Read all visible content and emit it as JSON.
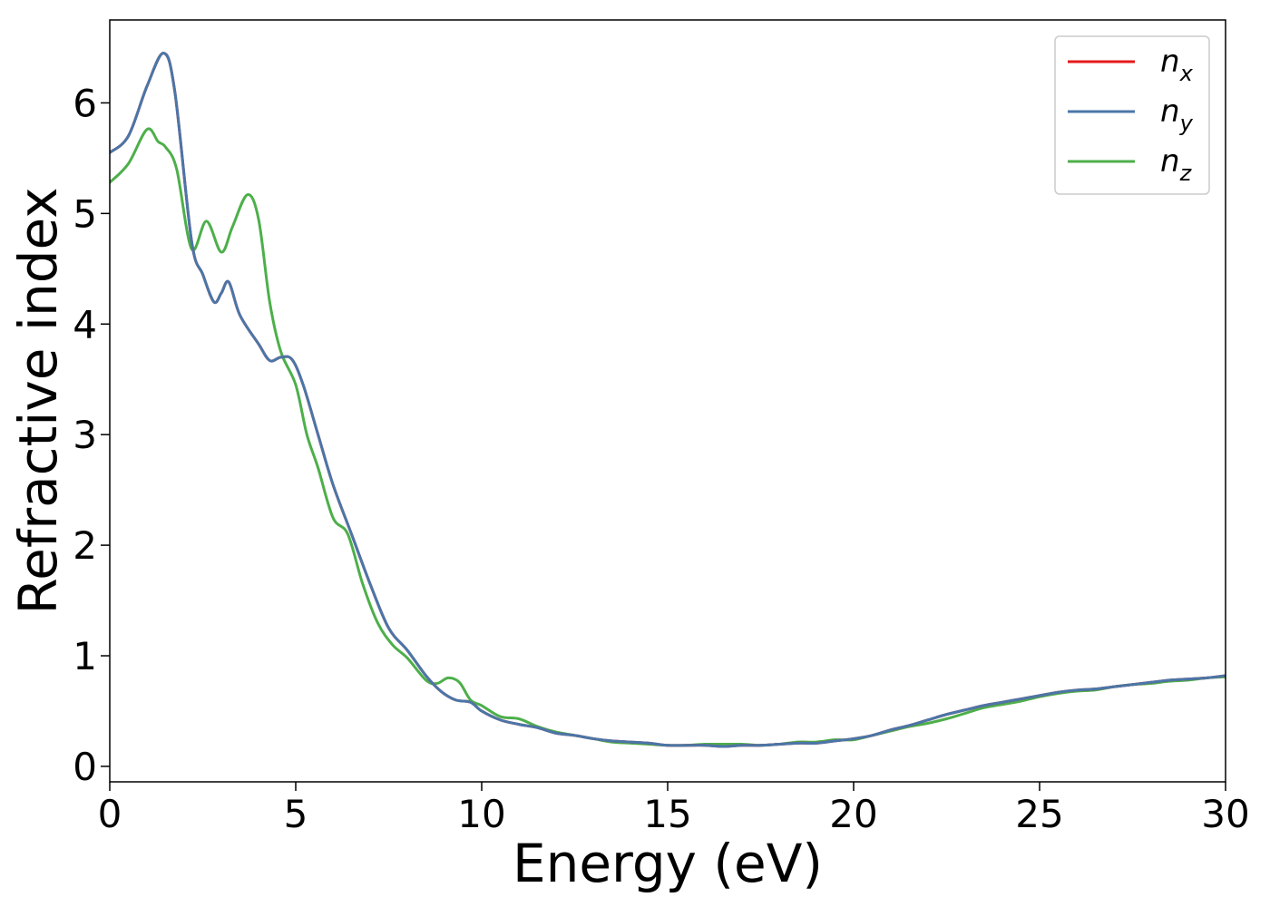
{
  "chart_data": {
    "type": "line",
    "xlabel": "Energy (eV)",
    "ylabel": "Refractive index",
    "xlim": [
      0,
      30
    ],
    "ylim": [
      -0.14,
      6.75
    ],
    "xticks": [
      0,
      5,
      10,
      15,
      20,
      25,
      30
    ],
    "yticks": [
      0,
      1,
      2,
      3,
      4,
      5,
      6
    ],
    "grid": false,
    "legend_position": "top-right",
    "series": [
      {
        "name": "n",
        "subscript": "x",
        "color": "#e41a1c",
        "x": [
          0,
          0.5,
          1.0,
          1.45,
          1.75,
          2.2,
          2.5,
          2.8,
          3.0,
          3.2,
          3.5,
          4.0,
          4.3,
          4.6,
          4.9,
          5.2,
          5.6,
          6.0,
          6.5,
          7.0,
          7.5,
          8.0,
          8.5,
          8.9,
          9.3,
          9.7,
          10.0,
          10.5,
          11.0,
          11.5,
          12.0,
          12.5,
          13.0,
          13.5,
          14.0,
          14.5,
          15.0,
          15.5,
          16.0,
          16.5,
          17.0,
          17.5,
          18.0,
          18.5,
          19.0,
          19.5,
          20.0,
          20.5,
          21.0,
          21.5,
          22.0,
          22.5,
          23.0,
          23.5,
          24.0,
          24.5,
          25.0,
          25.5,
          26.0,
          26.5,
          27.0,
          27.5,
          28.0,
          28.5,
          29.0,
          29.5,
          30.0
        ],
        "values": [
          5.55,
          5.7,
          6.15,
          6.45,
          6.1,
          4.75,
          4.45,
          4.2,
          4.28,
          4.38,
          4.08,
          3.82,
          3.67,
          3.7,
          3.68,
          3.45,
          3.0,
          2.55,
          2.1,
          1.65,
          1.25,
          1.05,
          0.82,
          0.68,
          0.6,
          0.58,
          0.5,
          0.42,
          0.38,
          0.35,
          0.3,
          0.28,
          0.25,
          0.23,
          0.22,
          0.21,
          0.19,
          0.19,
          0.19,
          0.18,
          0.19,
          0.19,
          0.2,
          0.21,
          0.21,
          0.23,
          0.25,
          0.28,
          0.33,
          0.37,
          0.42,
          0.47,
          0.51,
          0.55,
          0.58,
          0.61,
          0.64,
          0.67,
          0.69,
          0.7,
          0.72,
          0.74,
          0.76,
          0.78,
          0.79,
          0.8,
          0.82
        ]
      },
      {
        "name": "n",
        "subscript": "y",
        "color": "#4a76a8",
        "x": [
          0,
          0.5,
          1.0,
          1.45,
          1.75,
          2.2,
          2.5,
          2.8,
          3.0,
          3.2,
          3.5,
          4.0,
          4.3,
          4.6,
          4.9,
          5.2,
          5.6,
          6.0,
          6.5,
          7.0,
          7.5,
          8.0,
          8.5,
          8.9,
          9.3,
          9.7,
          10.0,
          10.5,
          11.0,
          11.5,
          12.0,
          12.5,
          13.0,
          13.5,
          14.0,
          14.5,
          15.0,
          15.5,
          16.0,
          16.5,
          17.0,
          17.5,
          18.0,
          18.5,
          19.0,
          19.5,
          20.0,
          20.5,
          21.0,
          21.5,
          22.0,
          22.5,
          23.0,
          23.5,
          24.0,
          24.5,
          25.0,
          25.5,
          26.0,
          26.5,
          27.0,
          27.5,
          28.0,
          28.5,
          29.0,
          29.5,
          30.0
        ],
        "values": [
          5.55,
          5.7,
          6.15,
          6.45,
          6.1,
          4.75,
          4.45,
          4.2,
          4.28,
          4.38,
          4.08,
          3.82,
          3.67,
          3.7,
          3.68,
          3.45,
          3.0,
          2.55,
          2.1,
          1.65,
          1.25,
          1.05,
          0.82,
          0.68,
          0.6,
          0.58,
          0.5,
          0.42,
          0.38,
          0.35,
          0.3,
          0.28,
          0.25,
          0.23,
          0.22,
          0.21,
          0.19,
          0.19,
          0.19,
          0.18,
          0.19,
          0.19,
          0.2,
          0.21,
          0.21,
          0.23,
          0.25,
          0.28,
          0.33,
          0.37,
          0.42,
          0.47,
          0.51,
          0.55,
          0.58,
          0.61,
          0.64,
          0.67,
          0.69,
          0.7,
          0.72,
          0.74,
          0.76,
          0.78,
          0.79,
          0.8,
          0.82
        ]
      },
      {
        "name": "n",
        "subscript": "z",
        "color": "#4daf4a",
        "x": [
          0,
          0.5,
          1.0,
          1.3,
          1.5,
          1.8,
          2.2,
          2.6,
          3.0,
          3.3,
          3.7,
          4.0,
          4.3,
          4.6,
          5.0,
          5.3,
          5.6,
          6.0,
          6.4,
          6.8,
          7.2,
          7.6,
          8.0,
          8.5,
          8.8,
          9.1,
          9.4,
          9.7,
          10.0,
          10.5,
          11.0,
          11.5,
          12.0,
          12.5,
          13.0,
          13.5,
          14.0,
          14.5,
          15.0,
          15.5,
          16.0,
          16.5,
          17.0,
          17.5,
          18.0,
          18.5,
          19.0,
          19.5,
          20.0,
          20.5,
          21.0,
          21.5,
          22.0,
          22.5,
          23.0,
          23.5,
          24.0,
          24.5,
          25.0,
          25.5,
          26.0,
          26.5,
          27.0,
          27.5,
          28.0,
          28.5,
          29.0,
          29.5,
          30.0
        ],
        "values": [
          5.28,
          5.45,
          5.76,
          5.65,
          5.6,
          5.4,
          4.68,
          4.93,
          4.65,
          4.88,
          5.17,
          4.95,
          4.2,
          3.75,
          3.45,
          3.0,
          2.7,
          2.25,
          2.1,
          1.65,
          1.3,
          1.1,
          0.98,
          0.78,
          0.75,
          0.8,
          0.76,
          0.6,
          0.55,
          0.45,
          0.43,
          0.36,
          0.31,
          0.28,
          0.25,
          0.22,
          0.21,
          0.2,
          0.19,
          0.19,
          0.2,
          0.2,
          0.2,
          0.19,
          0.2,
          0.22,
          0.22,
          0.24,
          0.24,
          0.28,
          0.32,
          0.36,
          0.39,
          0.43,
          0.48,
          0.53,
          0.56,
          0.59,
          0.63,
          0.66,
          0.68,
          0.69,
          0.72,
          0.74,
          0.75,
          0.77,
          0.78,
          0.8,
          0.81
        ]
      }
    ]
  }
}
